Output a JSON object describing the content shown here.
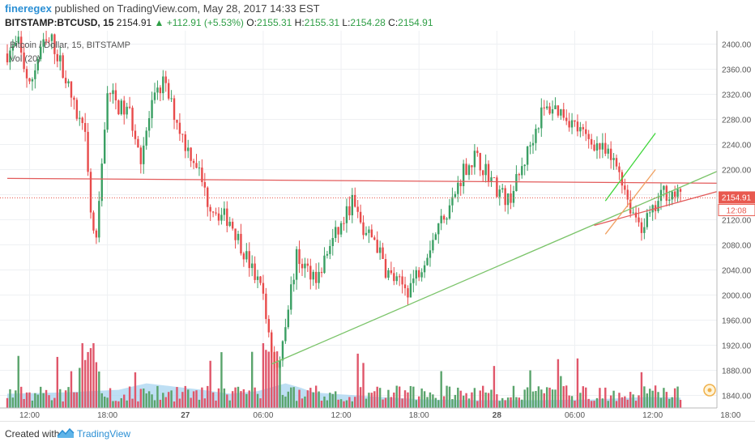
{
  "header": {
    "publisher": "fineregex",
    "published_text": " published on TradingView.com, May 28, 2017 14:33 EST",
    "symbol": "BITSTAMP:BTCUSD, 15",
    "last": "2154.91",
    "change": "▲ +112.91 (+5.53%)",
    "o_label": "O:",
    "o": "2155.31",
    "h_label": "H:",
    "h": "2155.31",
    "l_label": "L:",
    "l": "2154.28",
    "c_label": "C:",
    "c": "2154.91"
  },
  "legend": {
    "series": "Bitcoin / Dollar, 15, BITSTAMP",
    "volume": "Vol (20)"
  },
  "price_tag": {
    "value": "2154.91",
    "countdown": "12:08"
  },
  "footer": {
    "created": "Created with",
    "brand": "TradingView"
  },
  "colors": {
    "up": "#3a9f63",
    "down": "#e84b4b",
    "vol_up": "#5aa46c",
    "vol_down": "#e0566a",
    "red_line": "#e35b5b",
    "green_line": "#7bc46a",
    "bright_green": "#3ed63a",
    "orange_line": "#f0a060",
    "vol_ma_fill": "#a8d4f0",
    "tag_bg": "#e8594f"
  },
  "chart_data": {
    "type": "candlestick",
    "y_axis": {
      "min": 1820,
      "max": 2420,
      "ticks": [
        "2400.00",
        "2360.00",
        "2320.00",
        "2280.00",
        "2240.00",
        "2200.00",
        "2160.00",
        "2120.00",
        "2080.00",
        "2040.00",
        "2000.00",
        "1960.00",
        "1920.00",
        "1880.00",
        "1840.00"
      ]
    },
    "x_axis": {
      "ticks": [
        "12:00",
        "18:00",
        "27",
        "06:00",
        "12:00",
        "18:00",
        "28",
        "06:00",
        "12:00",
        "18:00"
      ]
    },
    "price_path": [
      [
        0,
        2385
      ],
      [
        4,
        2400
      ],
      [
        8,
        2330
      ],
      [
        12,
        2395
      ],
      [
        16,
        2405
      ],
      [
        20,
        2360
      ],
      [
        24,
        2300
      ],
      [
        28,
        2250
      ],
      [
        30,
        2130
      ],
      [
        32,
        2080
      ],
      [
        36,
        2330
      ],
      [
        40,
        2300
      ],
      [
        44,
        2290
      ],
      [
        48,
        2220
      ],
      [
        52,
        2300
      ],
      [
        56,
        2340
      ],
      [
        60,
        2290
      ],
      [
        64,
        2240
      ],
      [
        68,
        2210
      ],
      [
        72,
        2150
      ],
      [
        76,
        2130
      ],
      [
        80,
        2120
      ],
      [
        84,
        2080
      ],
      [
        88,
        2040
      ],
      [
        92,
        2000
      ],
      [
        94,
        1940
      ],
      [
        96,
        1890
      ],
      [
        98,
        1900
      ],
      [
        100,
        1960
      ],
      [
        104,
        2060
      ],
      [
        108,
        2040
      ],
      [
        112,
        2030
      ],
      [
        116,
        2080
      ],
      [
        120,
        2110
      ],
      [
        124,
        2150
      ],
      [
        128,
        2100
      ],
      [
        132,
        2090
      ],
      [
        136,
        2040
      ],
      [
        140,
        2020
      ],
      [
        144,
        2010
      ],
      [
        148,
        2040
      ],
      [
        152,
        2080
      ],
      [
        156,
        2120
      ],
      [
        160,
        2150
      ],
      [
        164,
        2200
      ],
      [
        168,
        2220
      ],
      [
        172,
        2200
      ],
      [
        176,
        2170
      ],
      [
        180,
        2150
      ],
      [
        184,
        2190
      ],
      [
        188,
        2240
      ],
      [
        192,
        2290
      ],
      [
        196,
        2300
      ],
      [
        200,
        2290
      ],
      [
        204,
        2270
      ],
      [
        208,
        2250
      ],
      [
        212,
        2240
      ],
      [
        216,
        2220
      ],
      [
        220,
        2200
      ],
      [
        224,
        2140
      ],
      [
        228,
        2110
      ],
      [
        232,
        2130
      ],
      [
        236,
        2165
      ],
      [
        240,
        2160
      ],
      [
        242,
        2155
      ]
    ],
    "vol_ma_path": [
      [
        0,
        0.22
      ],
      [
        20,
        0.24
      ],
      [
        40,
        0.28
      ],
      [
        50,
        0.38
      ],
      [
        60,
        0.33
      ],
      [
        70,
        0.28
      ],
      [
        80,
        0.22
      ],
      [
        90,
        0.26
      ],
      [
        100,
        0.38
      ],
      [
        105,
        0.32
      ],
      [
        110,
        0.24
      ],
      [
        130,
        0.18
      ],
      [
        150,
        0.13
      ],
      [
        170,
        0.12
      ],
      [
        190,
        0.12
      ],
      [
        210,
        0.13
      ],
      [
        220,
        0.15
      ],
      [
        230,
        0.17
      ],
      [
        242,
        0.16
      ]
    ],
    "trend_lines": [
      {
        "name": "horizontal-resistance",
        "color": "red_line",
        "p1": [
          0,
          2186
        ],
        "p2": [
          265,
          2178
        ]
      },
      {
        "name": "rising-support",
        "color": "green_line",
        "p1": [
          95,
          1890
        ],
        "p2": [
          265,
          2216
        ]
      },
      {
        "name": "short-term-support",
        "color": "red_line",
        "p1": [
          211,
          2111
        ],
        "p2": [
          265,
          2177
        ]
      },
      {
        "name": "channel-top",
        "color": "bright_green",
        "p1": [
          215,
          2150
        ],
        "p2": [
          233,
          2258
        ]
      },
      {
        "name": "channel-inner",
        "color": "orange_line",
        "p1": [
          215,
          2097
        ],
        "p2": [
          233,
          2200
        ]
      }
    ]
  }
}
